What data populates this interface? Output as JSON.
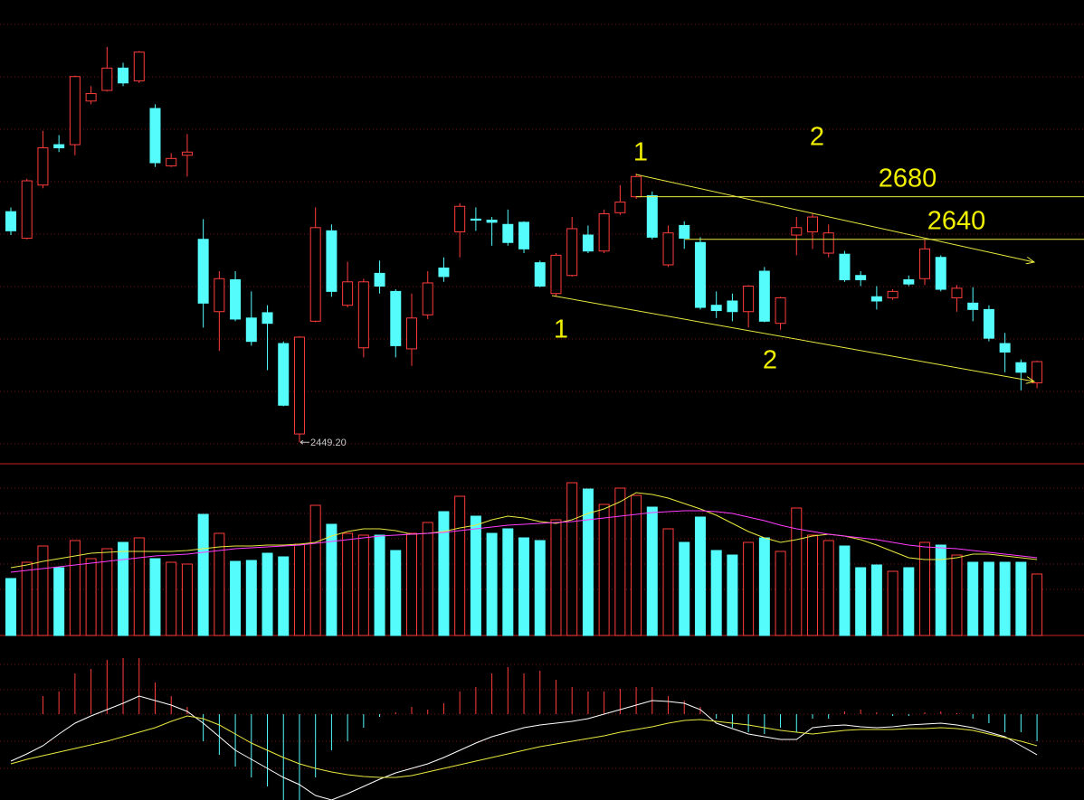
{
  "chart_data": [
    {
      "type": "candlestick",
      "open": [
        2666,
        2641,
        2691,
        2729,
        2729,
        2770,
        2780,
        2801,
        2789,
        2763,
        2709,
        2719,
        2640,
        2572,
        2602,
        2566,
        2571,
        2542,
        2457,
        2563,
        2648,
        2578,
        2538,
        2608,
        2591,
        2537,
        2569,
        2613,
        2647,
        2659,
        2658,
        2654,
        2656,
        2618,
        2589,
        2606,
        2644,
        2629,
        2665,
        2680,
        2681,
        2616,
        2653,
        2637,
        2578,
        2582,
        2572,
        2610,
        2561,
        2644,
        2647,
        2627,
        2626,
        2606,
        2586,
        2585,
        2602,
        2603,
        2623,
        2585,
        2580,
        2574,
        2542,
        2524,
        2505
      ],
      "high": [
        2670,
        2697,
        2742,
        2738,
        2794,
        2784,
        2821,
        2806,
        2817,
        2767,
        2721,
        2739,
        2659,
        2610,
        2610,
        2591,
        2578,
        2544,
        2549,
        2670,
        2654,
        2619,
        2603,
        2620,
        2593,
        2589,
        2610,
        2623,
        2674,
        2670,
        2661,
        2668,
        2657,
        2620,
        2627,
        2661,
        2653,
        2668,
        2691,
        2702,
        2685,
        2653,
        2657,
        2642,
        2591,
        2589,
        2597,
        2614,
        2586,
        2661,
        2664,
        2654,
        2629,
        2610,
        2596,
        2593,
        2606,
        2640,
        2625,
        2597,
        2595,
        2578,
        2552,
        2527,
        2526
      ],
      "low": [
        2644,
        2640,
        2688,
        2722,
        2719,
        2767,
        2779,
        2784,
        2787,
        2708,
        2708,
        2699,
        2557,
        2535,
        2563,
        2540,
        2517,
        2483,
        2449.2,
        2562,
        2586,
        2576,
        2529,
        2589,
        2529,
        2521,
        2565,
        2600,
        2623,
        2648,
        2634,
        2634,
        2627,
        2595,
        2586,
        2605,
        2627,
        2627,
        2663,
        2678,
        2640,
        2614,
        2631,
        2574,
        2566,
        2563,
        2557,
        2562,
        2555,
        2625,
        2631,
        2623,
        2600,
        2596,
        2574,
        2583,
        2596,
        2597,
        2591,
        2572,
        2563,
        2544,
        2515,
        2498,
        2500
      ],
      "close": [
        2648,
        2695,
        2726,
        2726,
        2793,
        2777,
        2801,
        2787,
        2816,
        2712,
        2716,
        2722,
        2580,
        2603,
        2565,
        2544,
        2561,
        2484,
        2548,
        2651,
        2591,
        2600,
        2600,
        2596,
        2540,
        2566,
        2599,
        2605,
        2671,
        2658,
        2656,
        2637,
        2631,
        2596,
        2625,
        2650,
        2629,
        2664,
        2675,
        2699,
        2642,
        2646,
        2641,
        2576,
        2573,
        2572,
        2596,
        2563,
        2585,
        2651,
        2661,
        2646,
        2602,
        2602,
        2582,
        2591,
        2598,
        2631,
        2593,
        2594,
        2574,
        2547,
        2534,
        2515,
        2525
      ],
      "up_color": "#ff3c3c",
      "down_color": "#54fcfc",
      "ylim": [
        2429,
        2865
      ],
      "levels": [
        2680,
        2640
      ],
      "level_color": "#e8e840",
      "annotations": [
        "1",
        "2",
        "1",
        "2"
      ],
      "low_label": {
        "value": 2449.2,
        "label": "2449.20"
      }
    },
    {
      "type": "volume",
      "values": [
        63,
        81,
        99,
        75,
        105,
        85,
        96,
        103,
        108,
        85,
        81,
        79,
        134,
        113,
        82,
        83,
        91,
        87,
        101,
        144,
        123,
        113,
        111,
        111,
        94,
        113,
        125,
        137,
        154,
        132,
        113,
        118,
        108,
        105,
        128,
        169,
        162,
        145,
        163,
        155,
        142,
        118,
        103,
        131,
        94,
        89,
        103,
        108,
        93,
        141,
        111,
        105,
        99,
        75,
        78,
        71,
        75,
        103,
        100,
        89,
        81,
        81,
        81,
        81,
        68
      ],
      "lines": [
        {
          "color": "#e8e840",
          "values": [
            75,
            78,
            82,
            85,
            88,
            91,
            92,
            93,
            93,
            93,
            93,
            94,
            96,
            98,
            99,
            99,
            100,
            100,
            101,
            103,
            110,
            115,
            118,
            118,
            116,
            112,
            113,
            115,
            119,
            122,
            128,
            132,
            130,
            126,
            124,
            128,
            135,
            140,
            148,
            158,
            156,
            152,
            146,
            140,
            133,
            124,
            115,
            108,
            103,
            106,
            110,
            112,
            110,
            106,
            100,
            93,
            86,
            84,
            84,
            86,
            90,
            90,
            88,
            86,
            84
          ]
        },
        {
          "color": "#ff3cff",
          "values": [
            70,
            72,
            74,
            76,
            78,
            80,
            82,
            84,
            86,
            88,
            89,
            90,
            92,
            94,
            96,
            97,
            98,
            99,
            100,
            102,
            104,
            106,
            108,
            110,
            111,
            112,
            113,
            114,
            116,
            118,
            120,
            122,
            123,
            124,
            125,
            126,
            128,
            130,
            132,
            134,
            136,
            137,
            138,
            138,
            137,
            135,
            131,
            127,
            122,
            118,
            115,
            112,
            110,
            108,
            106,
            103,
            100,
            98,
            97,
            96,
            94,
            92,
            90,
            88,
            86
          ]
        }
      ],
      "ylim": [
        0,
        190
      ]
    },
    {
      "type": "macd",
      "histogram": [
        0,
        0,
        20,
        25,
        45,
        50,
        60,
        62,
        62,
        35,
        20,
        8,
        -30,
        -45,
        -58,
        -70,
        -80,
        -95,
        -95,
        -70,
        -40,
        -30,
        -15,
        -3,
        2,
        8,
        5,
        12,
        25,
        30,
        45,
        52,
        45,
        48,
        38,
        30,
        25,
        25,
        28,
        30,
        30,
        20,
        15,
        8,
        -5,
        -15,
        -20,
        -22,
        -15,
        -20,
        -5,
        -5,
        3,
        5,
        2,
        -2,
        -2,
        2,
        3,
        1,
        -5,
        -10,
        -20,
        -20,
        -30
      ],
      "dif": {
        "color": "#ffffff",
        "values": [
          -52,
          -44,
          -35,
          -22,
          -10,
          -2,
          5,
          12,
          20,
          15,
          10,
          3,
          -10,
          -25,
          -40,
          -50,
          -60,
          -70,
          -78,
          -90,
          -95,
          -88,
          -80,
          -72,
          -65,
          -60,
          -55,
          -48,
          -40,
          -32,
          -25,
          -20,
          -15,
          -12,
          -10,
          -8,
          -5,
          0,
          5,
          10,
          15,
          14,
          12,
          5,
          -10,
          -16,
          -22,
          -25,
          -28,
          -28,
          -15,
          -13,
          -12,
          -14,
          -15,
          -14,
          -12,
          -11,
          -10,
          -12,
          -15,
          -20,
          -25,
          -35,
          -45
        ]
      },
      "dea": {
        "color": "#e8e840",
        "values": [
          -55,
          -50,
          -46,
          -42,
          -38,
          -34,
          -30,
          -25,
          -20,
          -15,
          -8,
          -2,
          -5,
          -12,
          -22,
          -32,
          -40,
          -48,
          -55,
          -60,
          -64,
          -67,
          -69,
          -70,
          -70,
          -68,
          -64,
          -60,
          -56,
          -52,
          -48,
          -44,
          -40,
          -36,
          -33,
          -30,
          -27,
          -24,
          -20,
          -17,
          -14,
          -10,
          -7,
          -6,
          -8,
          -10,
          -12,
          -15,
          -18,
          -20,
          -22,
          -20,
          -18,
          -17,
          -17,
          -17,
          -16,
          -16,
          -15,
          -16,
          -18,
          -22,
          -26,
          -30,
          -35
        ]
      },
      "up_color": "#ff3c3c",
      "down_color": "#54fcfc",
      "ylim": [
        -95,
        87
      ]
    }
  ]
}
